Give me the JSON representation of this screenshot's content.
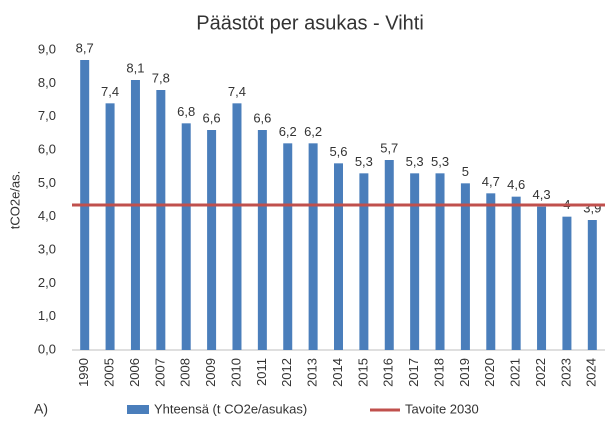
{
  "chart_data": {
    "type": "bar",
    "title": "Päästöt per asukas - Vihti",
    "y_label": "tCO2e/as.",
    "annotation": "A)",
    "categories": [
      "1990",
      "2005",
      "2006",
      "2007",
      "2008",
      "2009",
      "2010",
      "2011",
      "2012",
      "2013",
      "2014",
      "2015",
      "2016",
      "2017",
      "2018",
      "2019",
      "2020",
      "2021",
      "2022",
      "2023",
      "2024"
    ],
    "series": [
      {
        "name": "Yhteensä (t CO2e/asukas)",
        "color": "#4a7ebb",
        "values": [
          8.7,
          7.4,
          8.1,
          7.8,
          6.8,
          6.6,
          7.4,
          6.6,
          6.2,
          6.2,
          5.6,
          5.3,
          5.7,
          5.3,
          5.3,
          5,
          4.7,
          4.6,
          4.3,
          4,
          3.9
        ],
        "value_labels": [
          "8,7",
          "7,4",
          "8,1",
          "7,8",
          "6,8",
          "6,6",
          "7,4",
          "6,6",
          "6,2",
          "6,2",
          "5,6",
          "5,3",
          "5,7",
          "5,3",
          "5,3",
          "5",
          "4,7",
          "4,6",
          "4,3",
          "4",
          "3,9"
        ]
      }
    ],
    "reference_line": {
      "name": "Tavoite 2030",
      "value": 4.35,
      "color": "#c0504d"
    },
    "ylim": [
      0,
      9
    ],
    "yticks": [
      {
        "value": 0,
        "label": "0,0"
      },
      {
        "value": 1,
        "label": "1,0"
      },
      {
        "value": 2,
        "label": "2,0"
      },
      {
        "value": 3,
        "label": "3,0"
      },
      {
        "value": 4,
        "label": "4,0"
      },
      {
        "value": 5,
        "label": "5,0"
      },
      {
        "value": 6,
        "label": "6,0"
      },
      {
        "value": 7,
        "label": "7,0"
      },
      {
        "value": 8,
        "label": "8,0"
      },
      {
        "value": 9,
        "label": "9,0"
      }
    ],
    "grid": false
  }
}
